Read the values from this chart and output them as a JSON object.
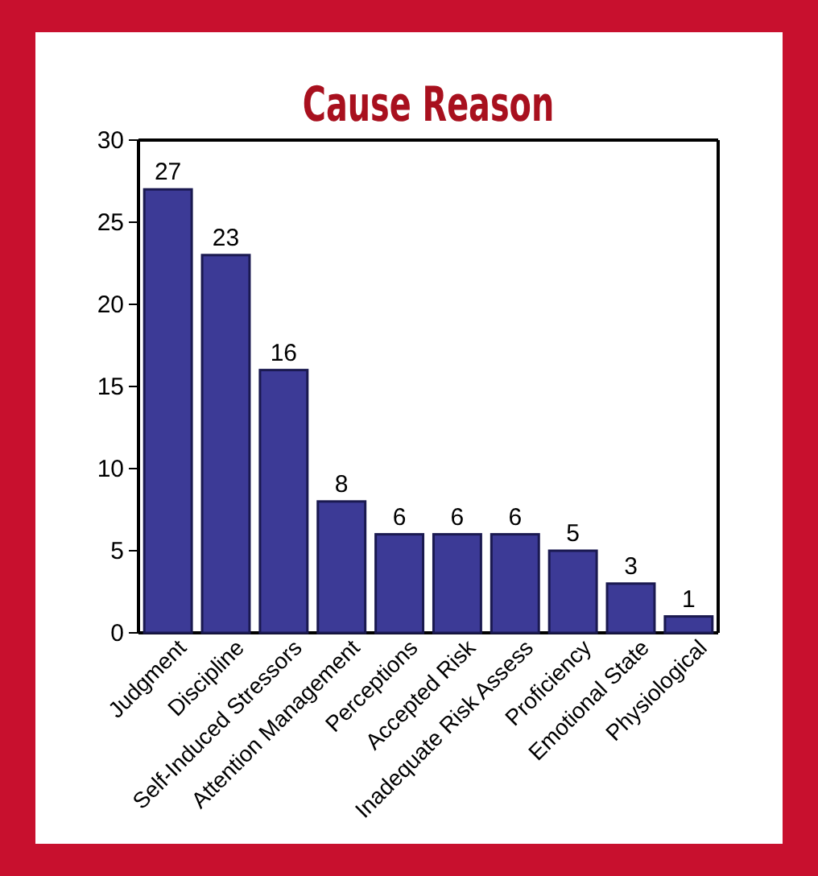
{
  "chart_data": {
    "type": "bar",
    "title": "Cause Reason",
    "categories": [
      "Judgment",
      "Discipline",
      "Self-Induced Stressors",
      "Attention Management",
      "Perceptions",
      "Accepted Risk",
      "Inadequate Risk Assess",
      "Proficiency",
      "Emotional State",
      "Physiological"
    ],
    "values": [
      27,
      23,
      16,
      8,
      6,
      6,
      6,
      5,
      3,
      1
    ],
    "color": "#3c3a96",
    "ylim": [
      0,
      30
    ],
    "yticks": [
      0,
      5,
      10,
      15,
      20,
      25,
      30
    ],
    "grid": false,
    "data_labels": true
  }
}
